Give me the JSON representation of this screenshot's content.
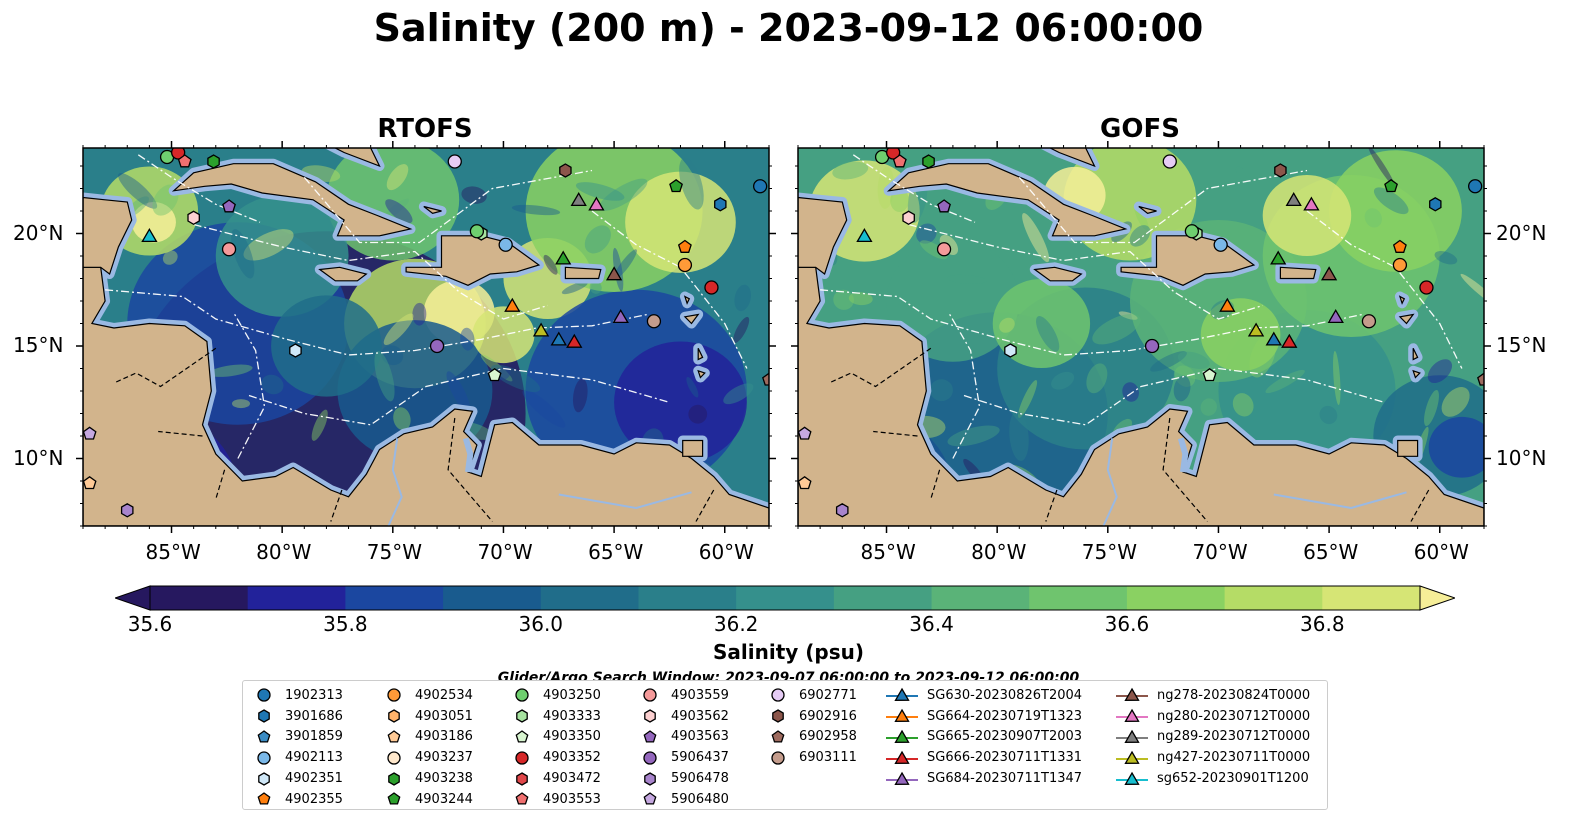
{
  "title": "Salinity (200 m) - 2023-09-12 06:00:00",
  "panels": [
    {
      "id": "rtofs",
      "title": "RTOFS",
      "x": 83,
      "seed": 7
    },
    {
      "id": "gofs",
      "title": "GOFS",
      "x": 798,
      "seed": 23
    }
  ],
  "map_extent": {
    "lon_min": -89,
    "lon_max": -58,
    "lat_min": 7,
    "lat_max": 23.8
  },
  "x_ticks": [
    {
      "lon": -85,
      "label": "85°W"
    },
    {
      "lon": -80,
      "label": "80°W"
    },
    {
      "lon": -75,
      "label": "75°W"
    },
    {
      "lon": -70,
      "label": "70°W"
    },
    {
      "lon": -65,
      "label": "65°W"
    },
    {
      "lon": -60,
      "label": "60°W"
    }
  ],
  "y_ticks": [
    {
      "lat": 20,
      "label": "20°N"
    },
    {
      "lat": 15,
      "label": "15°N"
    },
    {
      "lat": 10,
      "label": "10°N"
    }
  ],
  "colors": {
    "land": "#d2b48c",
    "shelf": "#9ab9e3",
    "scale": [
      "#26185f",
      "#22229a",
      "#1b47a0",
      "#195b8e",
      "#206d8a",
      "#2a7f8a",
      "#35908c",
      "#45a082",
      "#5ab378",
      "#6fc46e",
      "#8ad162",
      "#b5dc66",
      "#d6e575",
      "#f6ee98"
    ]
  },
  "colorbar": {
    "min": 35.6,
    "max": 36.9,
    "ticks": [
      {
        "value": 35.6,
        "label": "35.6"
      },
      {
        "value": 35.8,
        "label": "35.8"
      },
      {
        "value": 36.0,
        "label": "36.0"
      },
      {
        "value": 36.2,
        "label": "36.2"
      },
      {
        "value": 36.4,
        "label": "36.4"
      },
      {
        "value": 36.6,
        "label": "36.6"
      },
      {
        "value": 36.8,
        "label": "36.8"
      }
    ],
    "label": "Salinity (psu)"
  },
  "search_window": "Glider/Argo Search Window: 2023-09-07 06:00:00 to 2023-09-12 06:00:00",
  "legend": [
    {
      "label": "1902313",
      "marker": "circle",
      "color": "#1f77b4"
    },
    {
      "label": "3901686",
      "marker": "hexagon",
      "color": "#1f77b4"
    },
    {
      "label": "3901859",
      "marker": "pentagon",
      "color": "#3b8cc4"
    },
    {
      "label": "4902113",
      "marker": "circle",
      "color": "#7ab8e8"
    },
    {
      "label": "4902351",
      "marker": "hexagon",
      "color": "#d0e8f8"
    },
    {
      "label": "4902355",
      "marker": "pentagon",
      "color": "#ff7f0e"
    },
    {
      "label": "4902534",
      "marker": "circle",
      "color": "#ff9a38"
    },
    {
      "label": "4903051",
      "marker": "hexagon",
      "color": "#ffb36b"
    },
    {
      "label": "4903186",
      "marker": "pentagon",
      "color": "#ffca96"
    },
    {
      "label": "4903237",
      "marker": "circle",
      "color": "#ffe8cc"
    },
    {
      "label": "4903238",
      "marker": "hexagon",
      "color": "#2ca02c"
    },
    {
      "label": "4903244",
      "marker": "pentagon",
      "color": "#2ca02c"
    },
    {
      "label": "4903250",
      "marker": "circle",
      "color": "#6fcf6f"
    },
    {
      "label": "4903333",
      "marker": "hexagon",
      "color": "#a7e3a0"
    },
    {
      "label": "4903350",
      "marker": "pentagon",
      "color": "#d8f5d0"
    },
    {
      "label": "4903352",
      "marker": "circle",
      "color": "#d62728"
    },
    {
      "label": "4903472",
      "marker": "hexagon",
      "color": "#e0474a"
    },
    {
      "label": "4903553",
      "marker": "pentagon",
      "color": "#f07070"
    },
    {
      "label": "4903559",
      "marker": "circle",
      "color": "#f59a9a"
    },
    {
      "label": "4903562",
      "marker": "hexagon",
      "color": "#fcd0d0"
    },
    {
      "label": "4903563",
      "marker": "pentagon",
      "color": "#9467bd"
    },
    {
      "label": "5906437",
      "marker": "circle",
      "color": "#9467bd"
    },
    {
      "label": "5906478",
      "marker": "hexagon",
      "color": "#a884cc"
    },
    {
      "label": "5906480",
      "marker": "pentagon",
      "color": "#c5a8e0"
    },
    {
      "label": "6902771",
      "marker": "circle",
      "color": "#e6ccf5"
    },
    {
      "label": "6902916",
      "marker": "hexagon",
      "color": "#8c564b"
    },
    {
      "label": "6902958",
      "marker": "pentagon",
      "color": "#9e6b5f"
    },
    {
      "label": "6903111",
      "marker": "circle",
      "color": "#c49c8c"
    },
    {
      "label": "SG630-20230826T2004",
      "marker": "triangle-line",
      "color": "#1f77b4"
    },
    {
      "label": "SG664-20230719T1323",
      "marker": "triangle-line",
      "color": "#ff7f0e"
    },
    {
      "label": "SG665-20230907T2003",
      "marker": "triangle-line",
      "color": "#2ca02c"
    },
    {
      "label": "SG666-20230711T1331",
      "marker": "triangle-line",
      "color": "#d62728"
    },
    {
      "label": "SG684-20230711T1347",
      "marker": "triangle-line",
      "color": "#9467bd"
    },
    {
      "label": "ng278-20230824T0000",
      "marker": "triangle-line",
      "color": "#8c564b"
    },
    {
      "label": "ng280-20230712T0000",
      "marker": "triangle-line",
      "color": "#e377c2"
    },
    {
      "label": "ng289-20230712T0000",
      "marker": "triangle-line",
      "color": "#7f7f7f"
    },
    {
      "label": "ng427-20230711T0000",
      "marker": "triangle-line",
      "color": "#bcbd22"
    },
    {
      "label": "sg652-20230901T1200",
      "marker": "triangle-line",
      "color": "#17becf"
    }
  ],
  "observations": [
    {
      "lon": -85.2,
      "lat": 23.4,
      "marker": "circle",
      "color": "#6fcf6f"
    },
    {
      "lon": -84.7,
      "lat": 23.6,
      "marker": "circle",
      "color": "#d62728"
    },
    {
      "lon": -84.4,
      "lat": 23.2,
      "marker": "pentagon",
      "color": "#f07070"
    },
    {
      "lon": -83.1,
      "lat": 23.2,
      "marker": "hexagon",
      "color": "#2ca02c"
    },
    {
      "lon": -72.2,
      "lat": 23.2,
      "marker": "circle",
      "color": "#e6ccf5"
    },
    {
      "lon": -67.2,
      "lat": 22.8,
      "marker": "hexagon",
      "color": "#8c564b"
    },
    {
      "lon": -62.2,
      "lat": 22.1,
      "marker": "pentagon",
      "color": "#2ca02c"
    },
    {
      "lon": -58.4,
      "lat": 22.1,
      "marker": "circle",
      "color": "#1f77b4"
    },
    {
      "lon": -60.2,
      "lat": 21.3,
      "marker": "hexagon",
      "color": "#1f77b4"
    },
    {
      "lon": -84.0,
      "lat": 20.7,
      "marker": "hexagon",
      "color": "#fcd0d0"
    },
    {
      "lon": -82.4,
      "lat": 21.2,
      "marker": "pentagon",
      "color": "#9467bd"
    },
    {
      "lon": -86.0,
      "lat": 19.9,
      "marker": "triangle",
      "color": "#17becf"
    },
    {
      "lon": -82.4,
      "lat": 19.3,
      "marker": "circle",
      "color": "#f59a9a"
    },
    {
      "lon": -71.0,
      "lat": 20.0,
      "marker": "hexagon",
      "color": "#a7e3a0"
    },
    {
      "lon": -71.2,
      "lat": 20.1,
      "marker": "circle",
      "color": "#6fcf6f"
    },
    {
      "lon": -69.9,
      "lat": 19.5,
      "marker": "circle",
      "color": "#7ab8e8"
    },
    {
      "lon": -66.6,
      "lat": 21.5,
      "marker": "triangle",
      "color": "#7f7f7f"
    },
    {
      "lon": -65.8,
      "lat": 21.3,
      "marker": "triangle",
      "color": "#e377c2"
    },
    {
      "lon": -67.3,
      "lat": 18.9,
      "marker": "triangle",
      "color": "#2ca02c"
    },
    {
      "lon": -65.0,
      "lat": 18.2,
      "marker": "triangle",
      "color": "#8c564b"
    },
    {
      "lon": -61.8,
      "lat": 19.4,
      "marker": "pentagon",
      "color": "#ff7f0e"
    },
    {
      "lon": -61.8,
      "lat": 18.6,
      "marker": "circle",
      "color": "#ff9a38"
    },
    {
      "lon": -60.6,
      "lat": 17.6,
      "marker": "circle",
      "color": "#d62728"
    },
    {
      "lon": -69.6,
      "lat": 16.8,
      "marker": "triangle",
      "color": "#ff7f0e"
    },
    {
      "lon": -68.3,
      "lat": 15.7,
      "marker": "triangle",
      "color": "#bcbd22"
    },
    {
      "lon": -67.5,
      "lat": 15.3,
      "marker": "triangle",
      "color": "#1f77b4"
    },
    {
      "lon": -66.8,
      "lat": 15.2,
      "marker": "triangle",
      "color": "#d62728"
    },
    {
      "lon": -64.7,
      "lat": 16.3,
      "marker": "triangle",
      "color": "#9467bd"
    },
    {
      "lon": -63.2,
      "lat": 16.1,
      "marker": "circle",
      "color": "#c49c8c"
    },
    {
      "lon": -73.0,
      "lat": 15.0,
      "marker": "circle",
      "color": "#9467bd"
    },
    {
      "lon": -79.4,
      "lat": 14.8,
      "marker": "hexagon",
      "color": "#d0e8f8"
    },
    {
      "lon": -70.4,
      "lat": 13.7,
      "marker": "pentagon",
      "color": "#d8f5d0"
    },
    {
      "lon": -58.0,
      "lat": 13.5,
      "marker": "pentagon",
      "color": "#9e6b5f"
    },
    {
      "lon": -88.7,
      "lat": 11.1,
      "marker": "pentagon",
      "color": "#c5a8e0"
    },
    {
      "lon": -88.7,
      "lat": 8.9,
      "marker": "pentagon",
      "color": "#ffca96"
    },
    {
      "lon": -87.0,
      "lat": 7.7,
      "marker": "hexagon",
      "color": "#a884cc"
    }
  ]
}
